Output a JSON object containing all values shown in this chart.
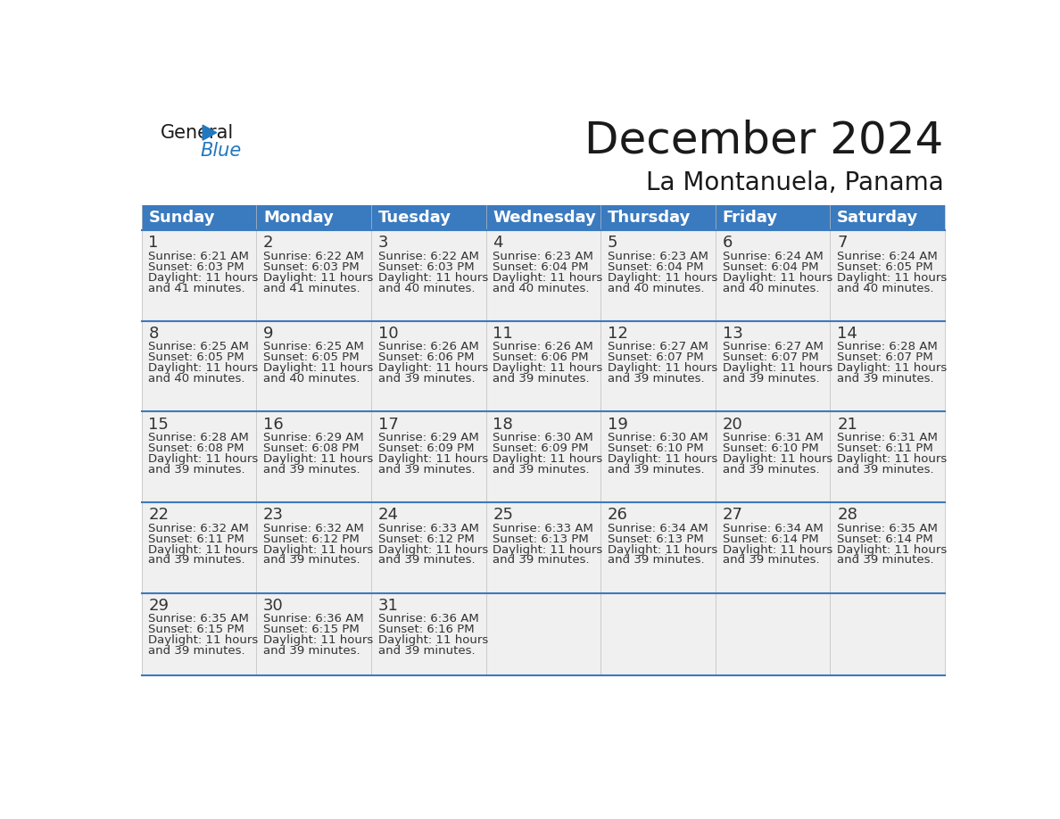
{
  "title": "December 2024",
  "subtitle": "La Montanuela, Panama",
  "header_color": "#3a7abf",
  "header_text_color": "#ffffff",
  "row_bg_color": "#f0f0f0",
  "day_names": [
    "Sunday",
    "Monday",
    "Tuesday",
    "Wednesday",
    "Thursday",
    "Friday",
    "Saturday"
  ],
  "days": [
    {
      "date": 1,
      "col": 0,
      "row": 0,
      "sunrise": "6:21 AM",
      "sunset": "6:03 PM",
      "daylight": "11 hours and 41 minutes."
    },
    {
      "date": 2,
      "col": 1,
      "row": 0,
      "sunrise": "6:22 AM",
      "sunset": "6:03 PM",
      "daylight": "11 hours and 41 minutes."
    },
    {
      "date": 3,
      "col": 2,
      "row": 0,
      "sunrise": "6:22 AM",
      "sunset": "6:03 PM",
      "daylight": "11 hours and 40 minutes."
    },
    {
      "date": 4,
      "col": 3,
      "row": 0,
      "sunrise": "6:23 AM",
      "sunset": "6:04 PM",
      "daylight": "11 hours and 40 minutes."
    },
    {
      "date": 5,
      "col": 4,
      "row": 0,
      "sunrise": "6:23 AM",
      "sunset": "6:04 PM",
      "daylight": "11 hours and 40 minutes."
    },
    {
      "date": 6,
      "col": 5,
      "row": 0,
      "sunrise": "6:24 AM",
      "sunset": "6:04 PM",
      "daylight": "11 hours and 40 minutes."
    },
    {
      "date": 7,
      "col": 6,
      "row": 0,
      "sunrise": "6:24 AM",
      "sunset": "6:05 PM",
      "daylight": "11 hours and 40 minutes."
    },
    {
      "date": 8,
      "col": 0,
      "row": 1,
      "sunrise": "6:25 AM",
      "sunset": "6:05 PM",
      "daylight": "11 hours and 40 minutes."
    },
    {
      "date": 9,
      "col": 1,
      "row": 1,
      "sunrise": "6:25 AM",
      "sunset": "6:05 PM",
      "daylight": "11 hours and 40 minutes."
    },
    {
      "date": 10,
      "col": 2,
      "row": 1,
      "sunrise": "6:26 AM",
      "sunset": "6:06 PM",
      "daylight": "11 hours and 39 minutes."
    },
    {
      "date": 11,
      "col": 3,
      "row": 1,
      "sunrise": "6:26 AM",
      "sunset": "6:06 PM",
      "daylight": "11 hours and 39 minutes."
    },
    {
      "date": 12,
      "col": 4,
      "row": 1,
      "sunrise": "6:27 AM",
      "sunset": "6:07 PM",
      "daylight": "11 hours and 39 minutes."
    },
    {
      "date": 13,
      "col": 5,
      "row": 1,
      "sunrise": "6:27 AM",
      "sunset": "6:07 PM",
      "daylight": "11 hours and 39 minutes."
    },
    {
      "date": 14,
      "col": 6,
      "row": 1,
      "sunrise": "6:28 AM",
      "sunset": "6:07 PM",
      "daylight": "11 hours and 39 minutes."
    },
    {
      "date": 15,
      "col": 0,
      "row": 2,
      "sunrise": "6:28 AM",
      "sunset": "6:08 PM",
      "daylight": "11 hours and 39 minutes."
    },
    {
      "date": 16,
      "col": 1,
      "row": 2,
      "sunrise": "6:29 AM",
      "sunset": "6:08 PM",
      "daylight": "11 hours and 39 minutes."
    },
    {
      "date": 17,
      "col": 2,
      "row": 2,
      "sunrise": "6:29 AM",
      "sunset": "6:09 PM",
      "daylight": "11 hours and 39 minutes."
    },
    {
      "date": 18,
      "col": 3,
      "row": 2,
      "sunrise": "6:30 AM",
      "sunset": "6:09 PM",
      "daylight": "11 hours and 39 minutes."
    },
    {
      "date": 19,
      "col": 4,
      "row": 2,
      "sunrise": "6:30 AM",
      "sunset": "6:10 PM",
      "daylight": "11 hours and 39 minutes."
    },
    {
      "date": 20,
      "col": 5,
      "row": 2,
      "sunrise": "6:31 AM",
      "sunset": "6:10 PM",
      "daylight": "11 hours and 39 minutes."
    },
    {
      "date": 21,
      "col": 6,
      "row": 2,
      "sunrise": "6:31 AM",
      "sunset": "6:11 PM",
      "daylight": "11 hours and 39 minutes."
    },
    {
      "date": 22,
      "col": 0,
      "row": 3,
      "sunrise": "6:32 AM",
      "sunset": "6:11 PM",
      "daylight": "11 hours and 39 minutes."
    },
    {
      "date": 23,
      "col": 1,
      "row": 3,
      "sunrise": "6:32 AM",
      "sunset": "6:12 PM",
      "daylight": "11 hours and 39 minutes."
    },
    {
      "date": 24,
      "col": 2,
      "row": 3,
      "sunrise": "6:33 AM",
      "sunset": "6:12 PM",
      "daylight": "11 hours and 39 minutes."
    },
    {
      "date": 25,
      "col": 3,
      "row": 3,
      "sunrise": "6:33 AM",
      "sunset": "6:13 PM",
      "daylight": "11 hours and 39 minutes."
    },
    {
      "date": 26,
      "col": 4,
      "row": 3,
      "sunrise": "6:34 AM",
      "sunset": "6:13 PM",
      "daylight": "11 hours and 39 minutes."
    },
    {
      "date": 27,
      "col": 5,
      "row": 3,
      "sunrise": "6:34 AM",
      "sunset": "6:14 PM",
      "daylight": "11 hours and 39 minutes."
    },
    {
      "date": 28,
      "col": 6,
      "row": 3,
      "sunrise": "6:35 AM",
      "sunset": "6:14 PM",
      "daylight": "11 hours and 39 minutes."
    },
    {
      "date": 29,
      "col": 0,
      "row": 4,
      "sunrise": "6:35 AM",
      "sunset": "6:15 PM",
      "daylight": "11 hours and 39 minutes."
    },
    {
      "date": 30,
      "col": 1,
      "row": 4,
      "sunrise": "6:36 AM",
      "sunset": "6:15 PM",
      "daylight": "11 hours and 39 minutes."
    },
    {
      "date": 31,
      "col": 2,
      "row": 4,
      "sunrise": "6:36 AM",
      "sunset": "6:16 PM",
      "daylight": "11 hours and 39 minutes."
    }
  ],
  "num_rows": 5,
  "logo_color_general": "#1a1a1a",
  "logo_color_blue": "#2278be",
  "logo_triangle_color": "#2278be",
  "divider_color": "#3a7abf",
  "text_color": "#333333",
  "title_fontsize": 36,
  "subtitle_fontsize": 20,
  "header_fontsize": 13,
  "date_fontsize": 13,
  "info_fontsize": 9.5,
  "fig_width": 11.88,
  "fig_height": 9.18
}
